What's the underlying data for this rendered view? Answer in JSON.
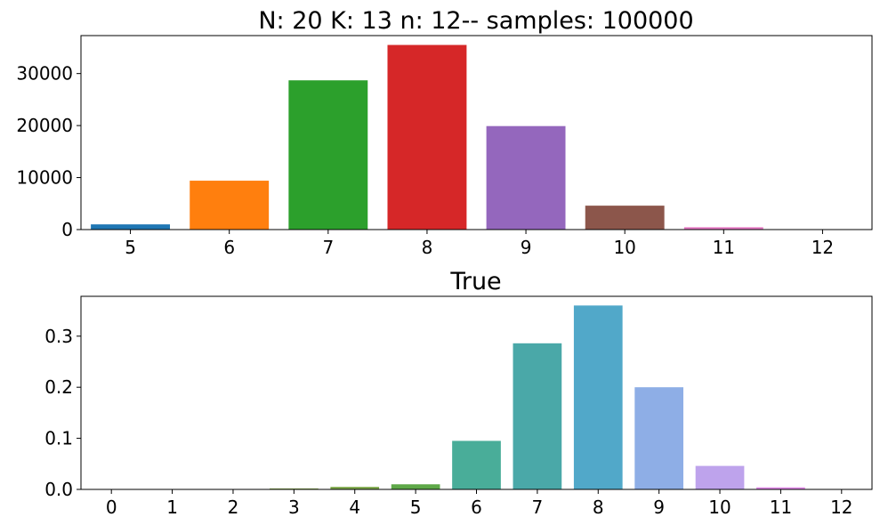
{
  "chart_data": [
    {
      "type": "bar",
      "title": "N: 20 K: 13 n: 12-- samples: 100000",
      "xlabel": "",
      "ylabel": "",
      "categories": [
        "5",
        "6",
        "7",
        "8",
        "9",
        "10",
        "11",
        "12"
      ],
      "values": [
        1000,
        9400,
        28700,
        35500,
        19900,
        4600,
        450,
        30
      ],
      "colors": [
        "#1f77b4",
        "#ff7f0e",
        "#2ca02c",
        "#d62728",
        "#9467bd",
        "#8c564b",
        "#e377c2",
        "#7f7f7f"
      ],
      "ylim": [
        0,
        37300
      ],
      "yticks": [
        0,
        10000,
        20000,
        30000
      ],
      "ytick_labels": [
        "0",
        "10000",
        "20000",
        "30000"
      ],
      "grid": false,
      "legend": "none"
    },
    {
      "type": "bar",
      "title": "True",
      "xlabel": "",
      "ylabel": "",
      "categories": [
        "0",
        "1",
        "2",
        "3",
        "4",
        "5",
        "6",
        "7",
        "8",
        "9",
        "10",
        "11",
        "12"
      ],
      "values": [
        1e-05,
        0.0001,
        0.0005,
        0.002,
        0.005,
        0.01,
        0.095,
        0.286,
        0.36,
        0.2,
        0.046,
        0.004,
        0.0001
      ],
      "colors": [
        "#b8d39a",
        "#a4c48f",
        "#a3bd7a",
        "#93b557",
        "#7ea84b",
        "#5ea848",
        "#49ad99",
        "#4aa8a8",
        "#51a8c9",
        "#8eaee6",
        "#bea3ec",
        "#e089e8",
        "#f28dd8"
      ],
      "ylim": [
        0,
        0.378
      ],
      "yticks": [
        0,
        0.1,
        0.2,
        0.3
      ],
      "ytick_labels": [
        "0.0",
        "0.1",
        "0.2",
        "0.3"
      ],
      "grid": false,
      "legend": "none"
    }
  ]
}
